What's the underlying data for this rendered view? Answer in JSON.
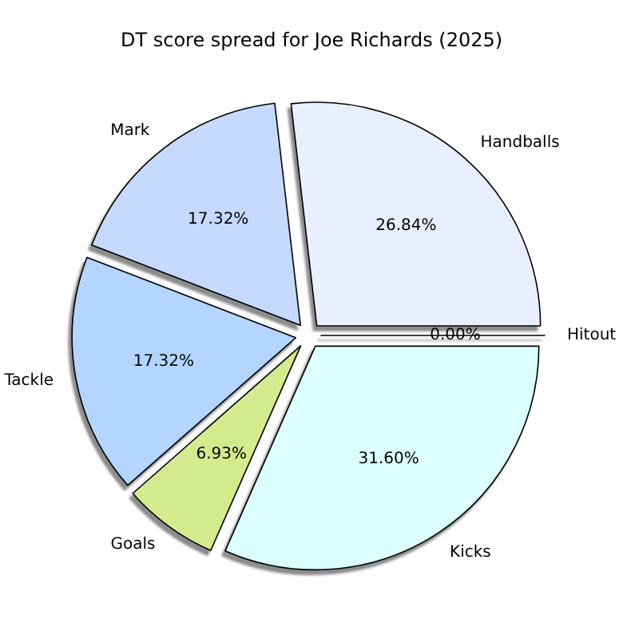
{
  "chart_data": {
    "type": "pie",
    "title": "DT score spread for Joe Richards (2025)",
    "categories": [
      "Handballs",
      "Mark",
      "Tackle",
      "Goals",
      "Kicks",
      "Hitout"
    ],
    "values": [
      26.84,
      17.32,
      17.32,
      6.93,
      31.6,
      0.0
    ],
    "value_labels": [
      "26.84%",
      "17.32%",
      "17.32%",
      "6.93%",
      "31.60%",
      "0.00%"
    ],
    "colors": [
      "#e8f0ff",
      "#c6d9ff",
      "#b3d5ff",
      "#d3eb8c",
      "#dcffff",
      "#f0f0f0"
    ]
  }
}
